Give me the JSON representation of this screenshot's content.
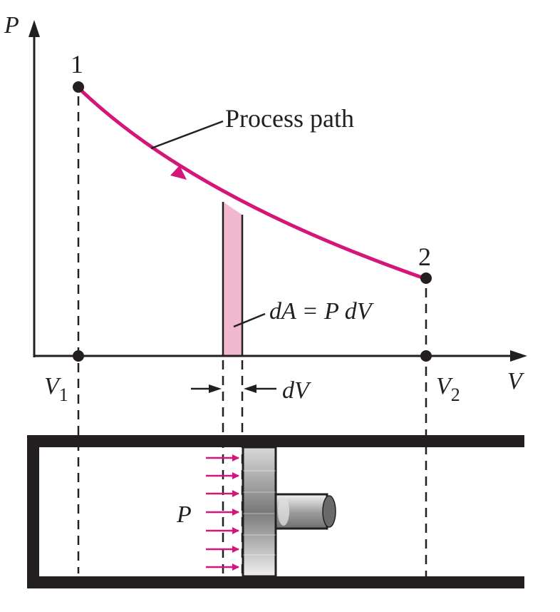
{
  "diagram": {
    "axes": {
      "y_label": "P",
      "x_label": "V"
    },
    "states": [
      {
        "id": "1",
        "label": "1"
      },
      {
        "id": "2",
        "label": "2"
      }
    ],
    "volume_labels": {
      "v1_main": "V",
      "v1_sub": "1",
      "v2_main": "V",
      "v2_sub": "2"
    },
    "annotations": {
      "process_path": "Process path",
      "area_element": "dA = P dV",
      "volume_element": "dV",
      "piston_pressure": "P"
    },
    "colors": {
      "curve": "#d4157a",
      "area_fill": "#f2b8cf",
      "ink": "#231f20"
    }
  }
}
